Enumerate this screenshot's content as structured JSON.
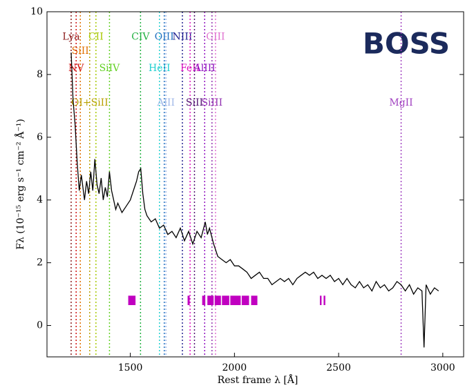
{
  "chart_data": {
    "type": "line",
    "brand": "BOSS",
    "xlabel": "Rest frame λ [Å]",
    "ylabel": "Fλ (10⁻¹⁵ erg s⁻¹ cm⁻² Å⁻¹)",
    "xlim": [
      1100,
      3100
    ],
    "ylim": [
      -1,
      10
    ],
    "xticks": [
      1500,
      2000,
      2500,
      3000
    ],
    "yticks": [
      0,
      2,
      4,
      6,
      8,
      10
    ],
    "series": [
      {
        "color": "#000000",
        "x": [
          1216,
          1225,
          1235,
          1245,
          1255,
          1265,
          1280,
          1290,
          1300,
          1310,
          1320,
          1330,
          1340,
          1350,
          1360,
          1370,
          1380,
          1390,
          1400,
          1410,
          1420,
          1430,
          1440,
          1460,
          1480,
          1500,
          1520,
          1530,
          1540,
          1550,
          1560,
          1570,
          1580,
          1600,
          1620,
          1640,
          1660,
          1680,
          1700,
          1720,
          1740,
          1760,
          1780,
          1800,
          1820,
          1840,
          1860,
          1870,
          1880,
          1900,
          1920,
          1940,
          1960,
          1980,
          2000,
          2020,
          2040,
          2060,
          2080,
          2100,
          2120,
          2140,
          2160,
          2180,
          2200,
          2220,
          2240,
          2260,
          2280,
          2300,
          2320,
          2340,
          2360,
          2380,
          2400,
          2420,
          2440,
          2460,
          2480,
          2500,
          2520,
          2540,
          2560,
          2580,
          2600,
          2620,
          2640,
          2660,
          2680,
          2700,
          2720,
          2740,
          2760,
          2780,
          2800,
          2820,
          2840,
          2860,
          2880,
          2900,
          2910,
          2920,
          2940,
          2960,
          2980
        ],
        "values": [
          8.7,
          7.2,
          6.4,
          5.2,
          4.3,
          4.8,
          4.0,
          4.6,
          4.2,
          4.9,
          4.3,
          5.3,
          4.5,
          4.2,
          4.7,
          4.0,
          4.4,
          4.1,
          4.9,
          4.3,
          4.0,
          3.7,
          3.9,
          3.6,
          3.8,
          4.0,
          4.4,
          4.6,
          4.9,
          5.0,
          4.2,
          3.7,
          3.5,
          3.3,
          3.4,
          3.1,
          3.2,
          2.9,
          3.0,
          2.8,
          3.1,
          2.7,
          3.0,
          2.6,
          3.0,
          2.8,
          3.3,
          2.9,
          3.1,
          2.6,
          2.2,
          2.1,
          2.0,
          2.1,
          1.9,
          1.9,
          1.8,
          1.7,
          1.5,
          1.6,
          1.7,
          1.5,
          1.5,
          1.3,
          1.4,
          1.5,
          1.4,
          1.5,
          1.3,
          1.5,
          1.6,
          1.7,
          1.6,
          1.7,
          1.5,
          1.6,
          1.5,
          1.6,
          1.4,
          1.5,
          1.3,
          1.5,
          1.3,
          1.2,
          1.4,
          1.2,
          1.3,
          1.1,
          1.4,
          1.2,
          1.3,
          1.1,
          1.2,
          1.4,
          1.3,
          1.1,
          1.3,
          1.0,
          1.2,
          1.1,
          -0.7,
          1.3,
          1.0,
          1.2,
          1.1
        ]
      }
    ],
    "masked_regions": [
      [
        1490,
        1525
      ],
      [
        1775,
        1785
      ],
      [
        1845,
        1860
      ],
      [
        1870,
        1900
      ],
      [
        1905,
        1935
      ],
      [
        1940,
        1975
      ],
      [
        1980,
        2030
      ],
      [
        2035,
        2070
      ],
      [
        2080,
        2110
      ],
      [
        2410,
        2418
      ],
      [
        2428,
        2436
      ]
    ],
    "mask_color": "#c000c0",
    "annotations": [
      {
        "label": "Lya",
        "x": 1216,
        "y": 9.2,
        "color": "#8b1a1a"
      },
      {
        "label": "SiII",
        "x": 1260,
        "y": 8.75,
        "color": "#e07000"
      },
      {
        "label": "NV",
        "x": 1240,
        "y": 8.2,
        "color": "#d01010"
      },
      {
        "label": "OI+SiII",
        "x": 1305,
        "y": 7.1,
        "color": "#b8a000"
      },
      {
        "label": "CII",
        "x": 1335,
        "y": 9.2,
        "color": "#a8c800"
      },
      {
        "label": "SiIV",
        "x": 1400,
        "y": 8.2,
        "color": "#60d020"
      },
      {
        "label": "CIV",
        "x": 1549,
        "y": 9.2,
        "color": "#20b040"
      },
      {
        "label": "HeII",
        "x": 1640,
        "y": 8.2,
        "color": "#20d0d0"
      },
      {
        "label": "OIII",
        "x": 1663,
        "y": 9.2,
        "color": "#2070c0"
      },
      {
        "label": "AlII",
        "x": 1671,
        "y": 7.1,
        "color": "#a0b8e8"
      },
      {
        "label": "NIII",
        "x": 1750,
        "y": 9.2,
        "color": "#202090"
      },
      {
        "label": "FeII",
        "x": 1787,
        "y": 8.2,
        "color": "#e010c0"
      },
      {
        "label": "SiII",
        "x": 1808,
        "y": 7.1,
        "color": "#501070"
      },
      {
        "label": "AlIII",
        "x": 1857,
        "y": 8.2,
        "color": "#9010c0"
      },
      {
        "label": "SiIII",
        "x": 1892,
        "y": 7.1,
        "color": "#9030b0"
      },
      {
        "label": "CIII",
        "x": 1909,
        "y": 9.2,
        "color": "#e070d0"
      },
      {
        "label": "MgII",
        "x": 2800,
        "y": 7.1,
        "color": "#a040c0"
      }
    ]
  }
}
